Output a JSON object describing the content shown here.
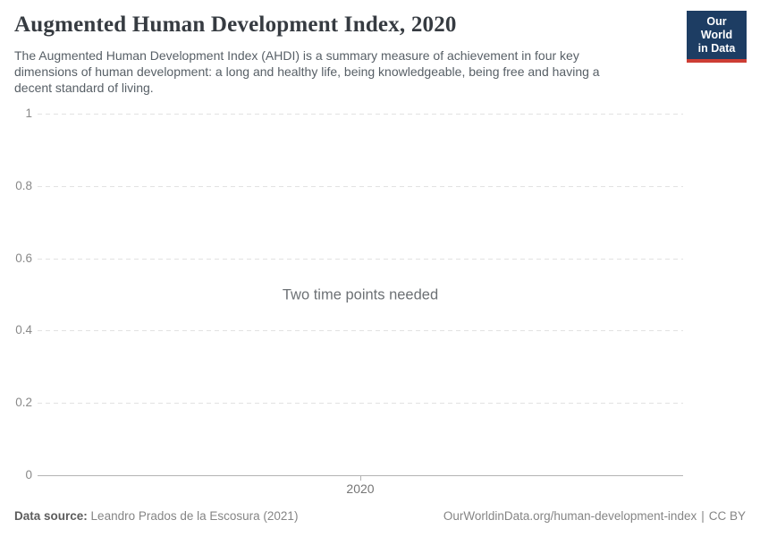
{
  "header": {
    "title": "Augmented Human Development Index, 2020",
    "subtitle": "The Augmented Human Development Index (AHDI) is a summary measure of achievement in four key dimensions of human development: a long and healthy life, being knowledgeable, being free and having a decent standard of living."
  },
  "logo": {
    "line1": "Our World",
    "line2": "in Data"
  },
  "chart_data": {
    "type": "line",
    "title": "Augmented Human Development Index, 2020",
    "series": [],
    "empty_message": "Two time points needed",
    "x_ticks": [
      "2020"
    ],
    "y_ticks": [
      "0",
      "0.2",
      "0.4",
      "0.6",
      "0.8",
      "1"
    ],
    "ylim": [
      0,
      1
    ],
    "grid": true,
    "legend_position": "none"
  },
  "footer": {
    "source_label": "Data source:",
    "source_value": "Leandro Prados de la Escosura (2021)",
    "link": "OurWorldinData.org/human-development-index",
    "divider": "|",
    "license": "CC BY"
  },
  "colors": {
    "logo_bg": "#1d3d63",
    "logo_bar": "#cd3d34",
    "grid": "#e2e2e2",
    "axis": "#b3b3b3",
    "muted_text": "#858585"
  }
}
